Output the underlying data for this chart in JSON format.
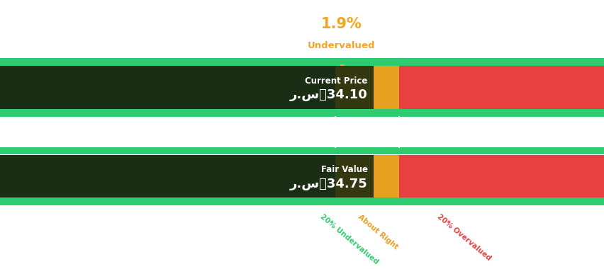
{
  "pct_label": "1.9%",
  "valuation_label": "Undervalued",
  "dash": "–",
  "annotation_color": "#F5A623",
  "bar1_label_top": "Current Price",
  "bar1_label_bottom": "ر.سؐ34.10",
  "bar2_label_top": "Fair Value",
  "bar2_label_bottom": "ر.سؐ34.75",
  "segment_green": 0.555,
  "segment_yellow": 0.105,
  "segment_red": 0.34,
  "color_bright_green": "#2ECC71",
  "color_dark_green": "#1E4D3A",
  "color_yellow": "#E8A020",
  "color_red": "#E84040",
  "color_dark_overlay": "#1A2A10",
  "xlabel_20under": "20% Undervalued",
  "xlabel_about": "About Right",
  "xlabel_20over": "20% Overvalued",
  "xlabel_color_green": "#2ECC71",
  "xlabel_color_yellow": "#E8A020",
  "xlabel_color_red": "#E84040",
  "background_color": "#FFFFFF"
}
